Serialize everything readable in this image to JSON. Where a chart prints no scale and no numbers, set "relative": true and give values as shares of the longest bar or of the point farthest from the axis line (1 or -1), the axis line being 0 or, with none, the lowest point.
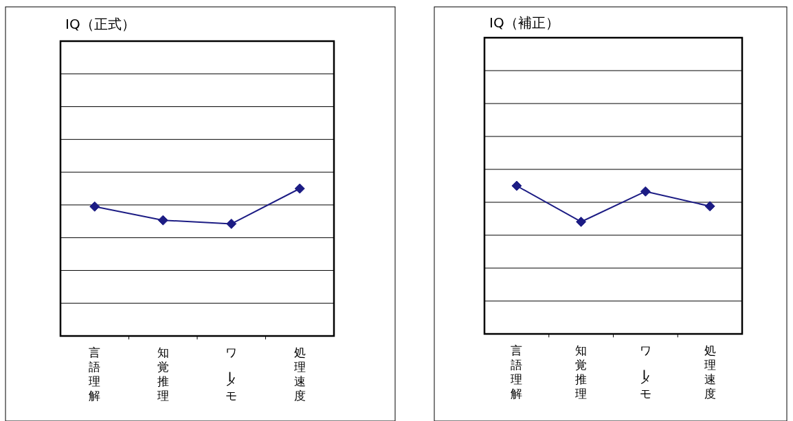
{
  "chart_data": [
    {
      "type": "line",
      "title": "IQ（正式）",
      "categories": [
        "言語理解",
        "知覚推理",
        "ワーメモ",
        "処理速度"
      ],
      "relative": true,
      "grid": "y",
      "marker": "diamond",
      "series": [
        {
          "color": "#1c1c84",
          "values": [
            0.878,
            0.785,
            0.761,
            1
          ]
        }
      ]
    },
    {
      "type": "line",
      "title": "IQ（補正）",
      "categories": [
        "言語理解",
        "知覚推理",
        "ワーメモ",
        "処理速度"
      ],
      "relative": true,
      "grid": "y",
      "marker": "diamond",
      "series": [
        {
          "color": "#1c1c84",
          "values": [
            1,
            0.757,
            0.962,
            0.862
          ]
        }
      ]
    }
  ]
}
